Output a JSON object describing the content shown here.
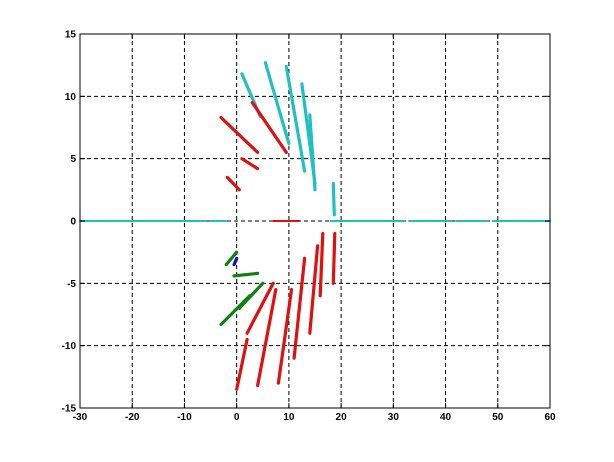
{
  "chart_data": {
    "type": "scatter",
    "title": "",
    "xlabel": "",
    "ylabel": "",
    "xlim": [
      -30,
      60
    ],
    "ylim": [
      -15,
      15
    ],
    "x_ticks": [
      -30,
      -20,
      -10,
      0,
      10,
      20,
      30,
      40,
      50,
      60
    ],
    "y_ticks": [
      -15,
      -10,
      -5,
      0,
      5,
      10,
      15
    ],
    "x_tick_labels": [
      "-30",
      "-20",
      "-10",
      "0",
      "10",
      "20",
      "30",
      "40",
      "50",
      "60"
    ],
    "y_tick_labels": [
      "-15",
      "-10",
      "-5",
      "0",
      "5",
      "10",
      "15"
    ],
    "grid": true,
    "grid_style": "dashed",
    "legend": "none",
    "series": [
      {
        "color": "#20c0c0",
        "segments": [
          [
            [
              -30,
              0
            ],
            [
              -6,
              0
            ]
          ],
          [
            [
              -5,
              0
            ],
            [
              -2,
              0
            ]
          ],
          [
            [
              18,
              0
            ],
            [
              32,
              0
            ]
          ],
          [
            [
              33,
              0
            ],
            [
              41,
              0
            ]
          ],
          [
            [
              42,
              0
            ],
            [
              48,
              0
            ]
          ],
          [
            [
              49,
              0
            ],
            [
              60,
              0
            ]
          ],
          [
            [
              1,
              11.8
            ],
            [
              4.5,
              8.4
            ]
          ],
          [
            [
              5.5,
              12.7
            ],
            [
              10,
              6.2
            ]
          ],
          [
            [
              9.5,
              12.4
            ],
            [
              13,
              4
            ]
          ],
          [
            [
              12.5,
              11
            ],
            [
              15,
              3
            ]
          ],
          [
            [
              14,
              8.5
            ],
            [
              15,
              2.5
            ]
          ],
          [
            [
              18.5,
              3
            ],
            [
              18.7,
              0.5
            ]
          ]
        ]
      },
      {
        "color": "#e01010",
        "segments": [
          [
            [
              3,
              9.5
            ],
            [
              9.5,
              5.5
            ]
          ],
          [
            [
              -3,
              8.3
            ],
            [
              4,
              5.5
            ]
          ],
          [
            [
              1,
              5
            ],
            [
              4,
              4.2
            ]
          ],
          [
            [
              -1.8,
              3.5
            ],
            [
              0.5,
              2.5
            ]
          ],
          [
            [
              7,
              0
            ],
            [
              12,
              0
            ]
          ],
          [
            [
              2,
              -9
            ],
            [
              7,
              -5
            ]
          ],
          [
            [
              0,
              -13.5
            ],
            [
              2,
              -9.5
            ]
          ],
          [
            [
              4,
              -13.2
            ],
            [
              7.5,
              -5.5
            ]
          ],
          [
            [
              8,
              -13
            ],
            [
              10.5,
              -5.5
            ]
          ],
          [
            [
              11,
              -11
            ],
            [
              13,
              -3
            ]
          ],
          [
            [
              14,
              -9
            ],
            [
              15.5,
              -2
            ]
          ],
          [
            [
              16,
              -6
            ],
            [
              16.5,
              -1
            ]
          ],
          [
            [
              18.5,
              -5
            ],
            [
              18.8,
              -1
            ]
          ]
        ]
      },
      {
        "color": "#108010",
        "segments": [
          [
            [
              -3,
              -8.3
            ],
            [
              2.5,
              -6
            ]
          ],
          [
            [
              0.5,
              -7
            ],
            [
              5,
              -5
            ]
          ],
          [
            [
              -0.5,
              -4.4
            ],
            [
              4,
              -4.2
            ]
          ],
          [
            [
              -2,
              -3.5
            ],
            [
              0,
              -2.5
            ]
          ]
        ]
      },
      {
        "color": "#1010c0",
        "segments": [
          [
            [
              -0.5,
              -3.5
            ],
            [
              0,
              -3
            ]
          ]
        ]
      }
    ]
  }
}
